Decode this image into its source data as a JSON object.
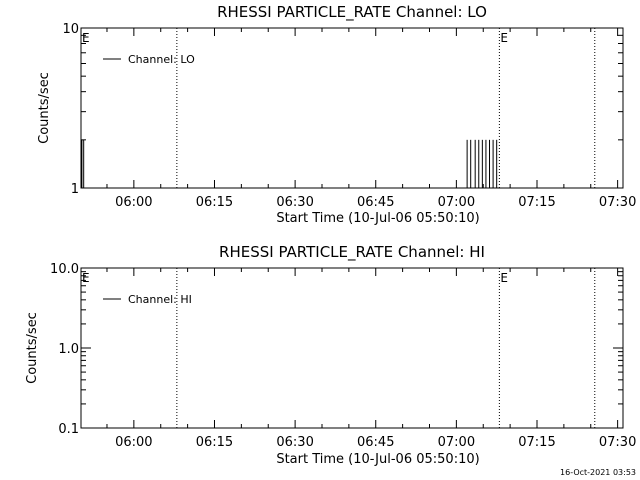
{
  "stamp": "16-Oct-2021 03:53",
  "chart_data": [
    {
      "type": "line",
      "title": "RHESSI PARTICLE_RATE Channel: LO",
      "xlabel": "Start Time (10-Jul-06 05:50:10)",
      "ylabel": "Counts/sec",
      "yscale": "log",
      "xlim": [
        "05:50:10",
        "07:31:00"
      ],
      "ylim": [
        1,
        10
      ],
      "x_ticks": [
        "06:00",
        "06:15",
        "06:30",
        "06:45",
        "07:00",
        "07:15",
        "07:30"
      ],
      "y_ticks": [
        "1",
        "10"
      ],
      "legend": {
        "label": "Channel: LO",
        "position": "top-left"
      },
      "markers": [
        {
          "label": "E",
          "time": "05:50:10"
        },
        {
          "label": "E",
          "time": "07:08:00"
        }
      ],
      "vlines": [
        "06:08:00",
        "07:08:00",
        "07:25:45"
      ],
      "spikes": [
        {
          "time": "05:50:20",
          "value": 2.0
        },
        {
          "time": "05:50:40",
          "value": 2.0
        },
        {
          "time": "07:02:00",
          "value": 2.0
        },
        {
          "time": "07:02:40",
          "value": 2.0
        },
        {
          "time": "07:03:30",
          "value": 2.0
        },
        {
          "time": "07:04:10",
          "value": 2.0
        },
        {
          "time": "07:04:50",
          "value": 2.0
        },
        {
          "time": "07:05:30",
          "value": 2.0
        },
        {
          "time": "07:06:10",
          "value": 2.0
        },
        {
          "time": "07:06:50",
          "value": 2.0
        },
        {
          "time": "07:07:30",
          "value": 2.0
        }
      ]
    },
    {
      "type": "line",
      "title": "RHESSI PARTICLE_RATE Channel: HI",
      "xlabel": "Start Time (10-Jul-06 05:50:10)",
      "ylabel": "Counts/sec",
      "yscale": "log",
      "xlim": [
        "05:50:10",
        "07:31:00"
      ],
      "ylim": [
        0.1,
        10
      ],
      "x_ticks": [
        "06:00",
        "06:15",
        "06:30",
        "06:45",
        "07:00",
        "07:15",
        "07:30"
      ],
      "y_ticks": [
        "0.1",
        "1.0",
        "10.0"
      ],
      "legend": {
        "label": "Channel: HI",
        "position": "top-left"
      },
      "markers": [
        {
          "label": "E",
          "time": "05:50:10"
        },
        {
          "label": "E",
          "time": "07:08:00"
        }
      ],
      "vlines": [
        "06:08:00",
        "07:08:00",
        "07:25:45"
      ],
      "spikes": []
    }
  ]
}
